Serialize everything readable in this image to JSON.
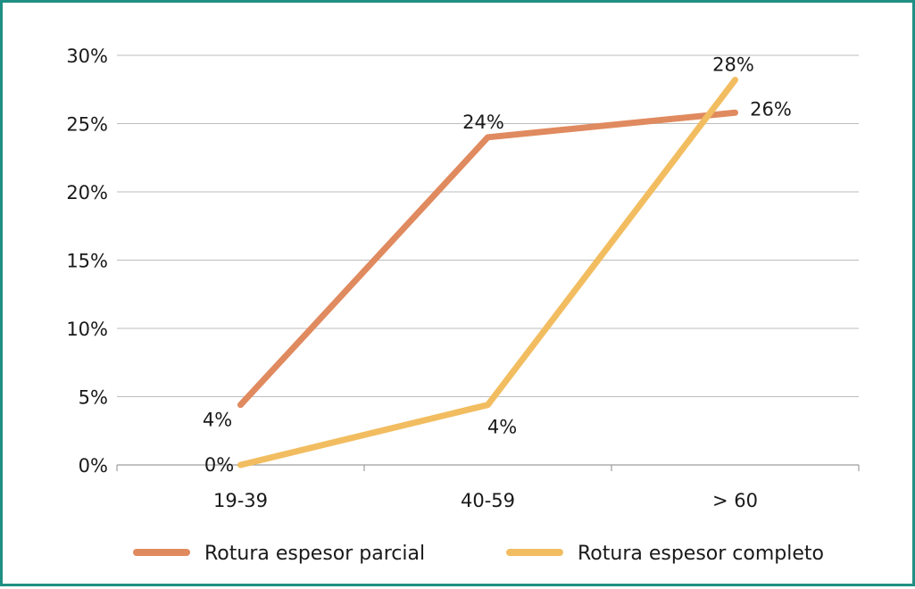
{
  "chart_data": {
    "type": "line",
    "categories": [
      "19-39",
      "40-59",
      "> 60"
    ],
    "ylim": [
      0,
      30
    ],
    "yticks": [
      "0%",
      "5%",
      "10%",
      "15%",
      "20%",
      "25%",
      "30%"
    ],
    "grid": true,
    "legend_position": "bottom",
    "series": [
      {
        "name": "Rotura espesor parcial",
        "color": "#e08a5f",
        "values": [
          4.4,
          24,
          25.8
        ],
        "labels": [
          "4%",
          "24%",
          "26%"
        ]
      },
      {
        "name": "Rotura espesor completo",
        "color": "#f2bd60",
        "values": [
          0,
          4.4,
          28.2
        ],
        "labels": [
          "0%",
          "4%",
          "28%"
        ]
      }
    ]
  }
}
